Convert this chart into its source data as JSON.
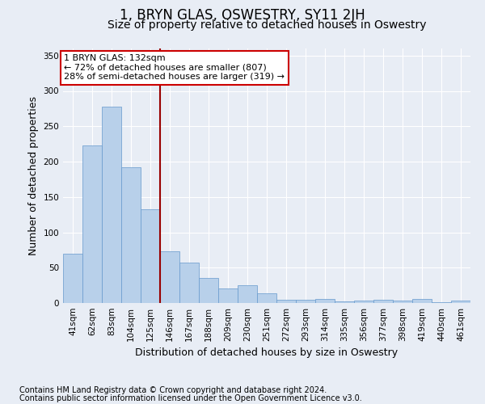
{
  "title": "1, BRYN GLAS, OSWESTRY, SY11 2JH",
  "subtitle": "Size of property relative to detached houses in Oswestry",
  "xlabel_bottom": "Distribution of detached houses by size in Oswestry",
  "ylabel": "Number of detached properties",
  "categories": [
    "41sqm",
    "62sqm",
    "83sqm",
    "104sqm",
    "125sqm",
    "146sqm",
    "167sqm",
    "188sqm",
    "209sqm",
    "230sqm",
    "251sqm",
    "272sqm",
    "293sqm",
    "314sqm",
    "335sqm",
    "356sqm",
    "377sqm",
    "398sqm",
    "419sqm",
    "440sqm",
    "461sqm"
  ],
  "values": [
    70,
    223,
    278,
    192,
    133,
    73,
    57,
    35,
    21,
    25,
    14,
    5,
    5,
    6,
    2,
    4,
    5,
    3,
    6,
    1,
    3
  ],
  "bar_color": "#b8d0ea",
  "bar_edge_color": "#6699cc",
  "vline_x": 4.5,
  "vline_color": "#990000",
  "annotation_text": "1 BRYN GLAS: 132sqm\n← 72% of detached houses are smaller (807)\n28% of semi-detached houses are larger (319) →",
  "annotation_box_color": "#ffffff",
  "annotation_box_edge": "#cc0000",
  "ylim": [
    0,
    360
  ],
  "yticks": [
    0,
    50,
    100,
    150,
    200,
    250,
    300,
    350
  ],
  "footnote1": "Contains HM Land Registry data © Crown copyright and database right 2024.",
  "footnote2": "Contains public sector information licensed under the Open Government Licence v3.0.",
  "bg_color": "#e8edf5",
  "plot_bg_color": "#e8edf5",
  "title_fontsize": 12,
  "subtitle_fontsize": 10,
  "tick_fontsize": 7.5,
  "ylabel_fontsize": 9,
  "footnote_fontsize": 7
}
